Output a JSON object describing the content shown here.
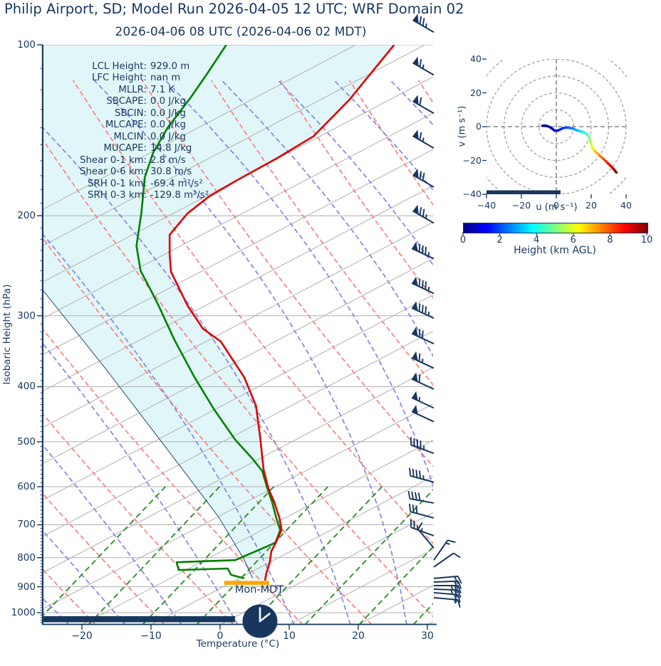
{
  "title": "Philip Airport, SD; Model Run 2026-04-05 12 UTC; WRF Domain 02",
  "subtitle": "2026-04-06 08 UTC  (2026-04-06 02 MDT)",
  "stats": [
    {
      "label": "LCL Height:",
      "value": "929.0 m"
    },
    {
      "label": "LFC Height:",
      "value": "nan m"
    },
    {
      "label": "MLLR:",
      "value": "7.1 K"
    },
    {
      "label": "SBCAPE:",
      "value": "0.0 J/kg"
    },
    {
      "label": "SBCIN:",
      "value": "0.0 J/kg"
    },
    {
      "label": "MLCAPE:",
      "value": "0.0 J/kg"
    },
    {
      "label": "MLCIN:",
      "value": "0.0 J/kg"
    },
    {
      "label": "MUCAPE:",
      "value": "14.8 J/kg"
    },
    {
      "label": "Shear 0-1 km:",
      "value": "2.8 m/s"
    },
    {
      "label": "Shear 0-6 km:",
      "value": "30.8 m/s"
    },
    {
      "label": "SRH 0-1 km:",
      "value": "-69.4 m²/s²"
    },
    {
      "label": "SRH 0-3 km:",
      "value": "-129.8 m²/s²"
    }
  ],
  "skewt": {
    "xlabel": "Temperature (°C)",
    "ylabel": "Isobaric Height (hPa)",
    "x_ticks": [
      -20,
      -10,
      0,
      10,
      20,
      30
    ],
    "p_ticks": [
      100,
      200,
      300,
      400,
      500,
      600,
      700,
      800,
      900,
      1000
    ],
    "surface_label": "Mon-MDT"
  },
  "hodograph": {
    "xlabel": "u (m s⁻¹)",
    "ylabel": "v (m s⁻¹)",
    "ticks": [
      -40,
      -20,
      0,
      20,
      40
    ],
    "ring_radii": [
      10,
      20,
      30,
      40,
      50
    ]
  },
  "colorbar": {
    "label": "Height (km AGL)",
    "ticks": [
      0,
      2,
      4,
      6,
      8,
      10
    ]
  },
  "colors": {
    "navy": "#17375e",
    "temperature": "#e00000",
    "dewpoint": "#008000",
    "cape_fill": "#e1f6f8",
    "dry_adiabat": "#f4827f",
    "moist_adiabat": "#8585e2",
    "mixing_ratio": "#2f8f2f",
    "isotherm": "#b5b5b5",
    "lcl_marker": "#ffa600"
  },
  "chart_data": {
    "type": "line",
    "description": "Skew-T log-P sounding with hodograph inset; profiles listed as [pressure_hPa, temperature_axis_degC]",
    "pressure_range": [
      100,
      1050
    ],
    "temperature_axis_range": [
      -25.7,
      30.8
    ],
    "temperature_profile": [
      [
        100,
        25.2
      ],
      [
        125,
        18.7
      ],
      [
        145,
        13.5
      ],
      [
        159,
        8.0
      ],
      [
        173,
        2.5
      ],
      [
        185,
        -1.6
      ],
      [
        198,
        -4.7
      ],
      [
        216,
        -7.3
      ],
      [
        234,
        -7.3
      ],
      [
        251,
        -7.1
      ],
      [
        288,
        -4.7
      ],
      [
        316,
        -2.5
      ],
      [
        333,
        0.1
      ],
      [
        385,
        3.5
      ],
      [
        432,
        5.2
      ],
      [
        492,
        5.8
      ],
      [
        560,
        6.3
      ],
      [
        605,
        7.0
      ],
      [
        637,
        7.8
      ],
      [
        681,
        8.6
      ],
      [
        715,
        8.9
      ],
      [
        751,
        8.1
      ],
      [
        780,
        7.4
      ],
      [
        815,
        7.2
      ],
      [
        851,
        6.7
      ],
      [
        878,
        6.5
      ]
    ],
    "dewpoint_profile": [
      [
        100,
        0.9
      ],
      [
        113,
        -2.0
      ],
      [
        124,
        -4.3
      ],
      [
        140,
        -7.6
      ],
      [
        155,
        -9.7
      ],
      [
        171,
        -10.9
      ],
      [
        198,
        -11.4
      ],
      [
        226,
        -12.1
      ],
      [
        250,
        -11.5
      ],
      [
        268,
        -10.2
      ],
      [
        288,
        -8.9
      ],
      [
        331,
        -6.6
      ],
      [
        385,
        -3.7
      ],
      [
        438,
        -0.9
      ],
      [
        496,
        2.2
      ],
      [
        536,
        4.7
      ],
      [
        563,
        6.1
      ],
      [
        602,
        6.8
      ],
      [
        637,
        7.5
      ],
      [
        679,
        8.1
      ],
      [
        715,
        8.7
      ],
      [
        753,
        8.0
      ],
      [
        808,
        2.2
      ],
      [
        815,
        -6.3
      ],
      [
        841,
        -6.0
      ],
      [
        836,
        1.1
      ],
      [
        858,
        1.6
      ],
      [
        870,
        3.5
      ]
    ],
    "parcel_profile": [
      [
        270,
        -25.7
      ],
      [
        374,
        -16.4
      ],
      [
        560,
        -5.4
      ],
      [
        679,
        -0.2
      ],
      [
        807,
        3.5
      ],
      [
        870,
        4.7
      ]
    ],
    "lcl_marker": {
      "p": 886,
      "t_start": 0.6,
      "t_end": 7.1
    },
    "progress_fraction_main": 0.49,
    "progress_fraction_hodo": 0.53,
    "wind_barbs": [
      {
        "p": 95,
        "dir": 300,
        "spd": 75
      },
      {
        "p": 113,
        "dir": 300,
        "spd": 65
      },
      {
        "p": 132,
        "dir": 300,
        "spd": 60
      },
      {
        "p": 152,
        "dir": 300,
        "spd": 65
      },
      {
        "p": 178,
        "dir": 300,
        "spd": 70
      },
      {
        "p": 206,
        "dir": 300,
        "spd": 75
      },
      {
        "p": 238,
        "dir": 295,
        "spd": 85
      },
      {
        "p": 274,
        "dir": 295,
        "spd": 85
      },
      {
        "p": 303,
        "dir": 295,
        "spd": 85
      },
      {
        "p": 336,
        "dir": 295,
        "spd": 70
      },
      {
        "p": 371,
        "dir": 295,
        "spd": 65
      },
      {
        "p": 404,
        "dir": 295,
        "spd": 60
      },
      {
        "p": 436,
        "dir": 295,
        "spd": 55
      },
      {
        "p": 461,
        "dir": 295,
        "spd": 50
      },
      {
        "p": 524,
        "dir": 290,
        "spd": 45
      },
      {
        "p": 589,
        "dir": 285,
        "spd": 45
      },
      {
        "p": 641,
        "dir": 280,
        "spd": 40
      },
      {
        "p": 681,
        "dir": 285,
        "spd": 30
      },
      {
        "p": 732,
        "dir": 290,
        "spd": 25
      },
      {
        "p": 769,
        "dir": 320,
        "spd": 15
      },
      {
        "p": 808,
        "dir": 35,
        "spd": 15
      },
      {
        "p": 831,
        "dir": 55,
        "spd": 10
      },
      {
        "p": 870,
        "dir": 85,
        "spd": 20
      },
      {
        "p": 883,
        "dir": 88,
        "spd": 20
      },
      {
        "p": 896,
        "dir": 90,
        "spd": 25
      },
      {
        "p": 909,
        "dir": 92,
        "spd": 25
      },
      {
        "p": 922,
        "dir": 95,
        "spd": 20
      },
      {
        "p": 941,
        "dir": 95,
        "spd": 15
      }
    ],
    "hodograph_trace": [
      [
        -8,
        0.5,
        0.0
      ],
      [
        -6.5,
        0.6,
        0.2
      ],
      [
        -5,
        0.3,
        0.4
      ],
      [
        -3.5,
        -0.4,
        0.6
      ],
      [
        -2,
        -1.5,
        0.8
      ],
      [
        -1,
        -2.3,
        1.0
      ],
      [
        0.5,
        -2.4,
        1.2
      ],
      [
        2,
        -1.8,
        1.4
      ],
      [
        3.5,
        -1.0,
        1.6
      ],
      [
        5,
        -0.6,
        1.8
      ],
      [
        6.5,
        -0.5,
        2.0
      ],
      [
        8,
        -0.8,
        2.2
      ],
      [
        9.5,
        -1.2,
        2.5
      ],
      [
        11,
        -1.8,
        2.8
      ],
      [
        12.5,
        -2.3,
        3.1
      ],
      [
        14,
        -2.8,
        3.4
      ],
      [
        15.5,
        -3.2,
        3.7
      ],
      [
        16.5,
        -3.8,
        4.0
      ],
      [
        17.5,
        -4.5,
        4.3
      ],
      [
        18.5,
        -5.5,
        4.6
      ],
      [
        19,
        -7,
        4.9
      ],
      [
        19.5,
        -8.5,
        5.2
      ],
      [
        20,
        -10,
        5.5
      ],
      [
        20.3,
        -11.5,
        5.8
      ],
      [
        20.8,
        -12.8,
        6.1
      ],
      [
        21.5,
        -13.8,
        6.4
      ],
      [
        22.5,
        -14.8,
        6.7
      ],
      [
        23.5,
        -15.8,
        7.0
      ],
      [
        24.8,
        -17,
        7.3
      ],
      [
        26,
        -18.2,
        7.6
      ],
      [
        27.2,
        -19.3,
        7.9
      ],
      [
        28.4,
        -20.5,
        8.2
      ],
      [
        29.6,
        -21.7,
        8.5
      ],
      [
        30.8,
        -22.9,
        8.8
      ],
      [
        32,
        -24.1,
        9.1
      ],
      [
        33,
        -25.3,
        9.4
      ],
      [
        33.8,
        -26.3,
        9.7
      ],
      [
        34.5,
        -27.2,
        10.0
      ]
    ],
    "hodograph_height_range_km": [
      0,
      10
    ]
  }
}
